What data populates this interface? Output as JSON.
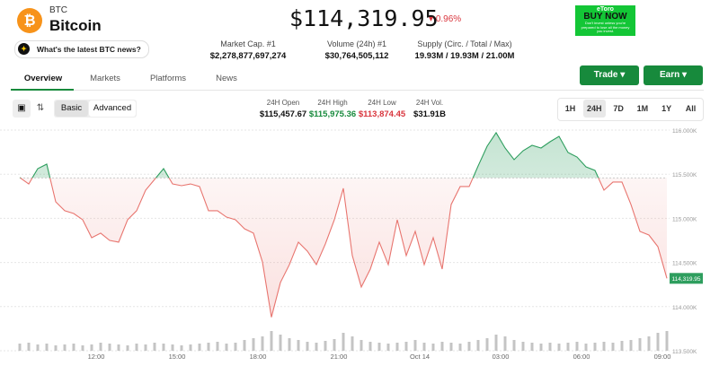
{
  "header": {
    "symbol": "BTC",
    "name": "Bitcoin",
    "news_button": "What's the latest BTC news?",
    "price": "$114,319.95",
    "change": "0.96%"
  },
  "stats": [
    {
      "label": "Market Cap. #1",
      "value": "$2,278,877,697,274"
    },
    {
      "label": "Volume (24h) #1",
      "value": "$30,764,505,112"
    },
    {
      "label": "Supply (Circ. / Total / Max)",
      "value": "19.93M / 19.93M / 21.00M"
    }
  ],
  "ad": {
    "brand": "eToro",
    "cta": "BUY NOW",
    "note": "Don't invest unless you're prepared to lose all the money you invest."
  },
  "tabs": [
    "Overview",
    "Markets",
    "Platforms",
    "News"
  ],
  "buttons": [
    "Trade",
    "Earn"
  ],
  "toolbar": {
    "modes": [
      "Basic",
      "Advanced"
    ],
    "ranges": [
      "1H",
      "24H",
      "7D",
      "1M",
      "1Y",
      "All"
    ],
    "stats": [
      {
        "label": "24H Open",
        "value": "$115,457.67"
      },
      {
        "label": "24H High",
        "value": "$115,975.36"
      },
      {
        "label": "24H Low",
        "value": "$113,874.45"
      },
      {
        "label": "24H Vol.",
        "value": "$31.91B"
      }
    ]
  },
  "chart_data": {
    "type": "line",
    "baseline": 115457.67,
    "color_up": "#2e9e5e",
    "color_down": "#e8756f",
    "grid": true,
    "x": [
      550,
      570,
      590,
      610,
      630,
      650,
      670,
      690,
      710,
      730,
      750,
      770,
      790,
      810,
      830,
      850,
      870,
      890,
      910,
      930,
      950,
      970,
      990,
      1010,
      1030,
      1050,
      1070,
      1090,
      1110,
      1130,
      1150,
      1170,
      1190,
      1210,
      1230,
      1250,
      1270,
      1290,
      1310,
      1330,
      1350,
      1370,
      1390,
      1410,
      1430,
      1450,
      1470,
      1490,
      1510,
      1530,
      1550,
      1570,
      1590,
      1610,
      1630,
      1650,
      1670,
      1690,
      1710,
      1730,
      1750,
      1770,
      1790,
      1810,
      1830,
      1850,
      1870,
      1890,
      1910,
      1930,
      1950,
      1970,
      1990
    ],
    "series": [
      {
        "name": "Price",
        "values": [
          115462,
          115390,
          115563,
          115614,
          115187,
          115086,
          115055,
          114984,
          114781,
          114832,
          114750,
          114730,
          114984,
          115086,
          115319,
          115441,
          115563,
          115390,
          115370,
          115390,
          115360,
          115086,
          115086,
          115014,
          114984,
          114882,
          114832,
          114506,
          113880,
          114273,
          114476,
          114730,
          114628,
          114476,
          114710,
          114984,
          115340,
          114578,
          114222,
          114425,
          114730,
          114476,
          114984,
          114578,
          114852,
          114476,
          114781,
          114425,
          115157,
          115360,
          115360,
          115594,
          115817,
          115970,
          115797,
          115665,
          115766,
          115827,
          115797,
          115868,
          115929,
          115746,
          115695,
          115583,
          115543,
          115319,
          115411,
          115411,
          115157,
          114852,
          114811,
          114679,
          114320
        ]
      },
      {
        "name": "Volume",
        "color": "#c4c4c4",
        "values": [
          8,
          9,
          7,
          8,
          6,
          7,
          8,
          6,
          7,
          9,
          8,
          7,
          6,
          8,
          7,
          9,
          8,
          7,
          6,
          7,
          8,
          9,
          10,
          8,
          9,
          12,
          14,
          16,
          22,
          18,
          14,
          12,
          10,
          9,
          11,
          13,
          20,
          16,
          12,
          10,
          9,
          8,
          9,
          10,
          12,
          9,
          8,
          10,
          9,
          8,
          10,
          12,
          14,
          18,
          16,
          12,
          10,
          9,
          8,
          9,
          8,
          9,
          10,
          8,
          9,
          10,
          9,
          11,
          12,
          14,
          16,
          20,
          22
        ]
      }
    ],
    "xlim": [
      550,
      1990
    ],
    "xticks": [
      {
        "value": 720,
        "label": "12:00"
      },
      {
        "value": 900,
        "label": "15:00"
      },
      {
        "value": 1080,
        "label": "18:00"
      },
      {
        "value": 1260,
        "label": "21:00"
      },
      {
        "value": 1440,
        "label": "Oct 14"
      },
      {
        "value": 1620,
        "label": "03:00"
      },
      {
        "value": 1800,
        "label": "06:00"
      },
      {
        "value": 1980,
        "label": "09:00"
      }
    ],
    "ylim": [
      113500,
      116000
    ],
    "yticks": [
      {
        "value": 113500,
        "label": "113.500K"
      },
      {
        "value": 114000,
        "label": "114.000K"
      },
      {
        "value": 114500,
        "label": "114.500K"
      },
      {
        "value": 115000,
        "label": "115.000K"
      },
      {
        "value": 115500,
        "label": "115.500K"
      },
      {
        "value": 116000,
        "label": "116.000K"
      }
    ],
    "last_price": {
      "value": 114319.95,
      "label": "114,319.95"
    }
  }
}
